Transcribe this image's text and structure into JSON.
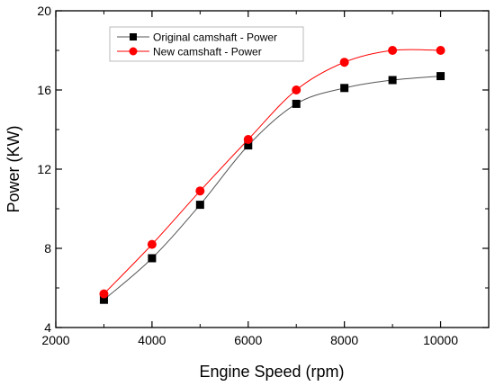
{
  "chart_data": {
    "type": "line",
    "title": "",
    "xlabel": "Engine Speed (rpm)",
    "ylabel": "Power (KW)",
    "xlim": [
      2000,
      11000
    ],
    "ylim": [
      4,
      20
    ],
    "xticks": [
      2000,
      4000,
      6000,
      8000,
      10000
    ],
    "yticks": [
      4,
      8,
      12,
      16,
      20
    ],
    "grid": false,
    "legend_position": "top-left",
    "x": [
      3000,
      4000,
      5000,
      6000,
      7000,
      8000,
      9000,
      10000
    ],
    "series": [
      {
        "name": "Original camshaft - Power",
        "values": [
          5.4,
          7.5,
          10.2,
          13.2,
          15.3,
          16.1,
          16.5,
          16.7
        ],
        "color": "#000000",
        "line_color": "#555555",
        "marker": "square"
      },
      {
        "name": "New camshaft - Power",
        "values": [
          5.7,
          8.2,
          10.9,
          13.5,
          16.0,
          17.4,
          18.0,
          18.0
        ],
        "color": "#ff0000",
        "line_color": "#ff0000",
        "marker": "circle"
      }
    ]
  }
}
